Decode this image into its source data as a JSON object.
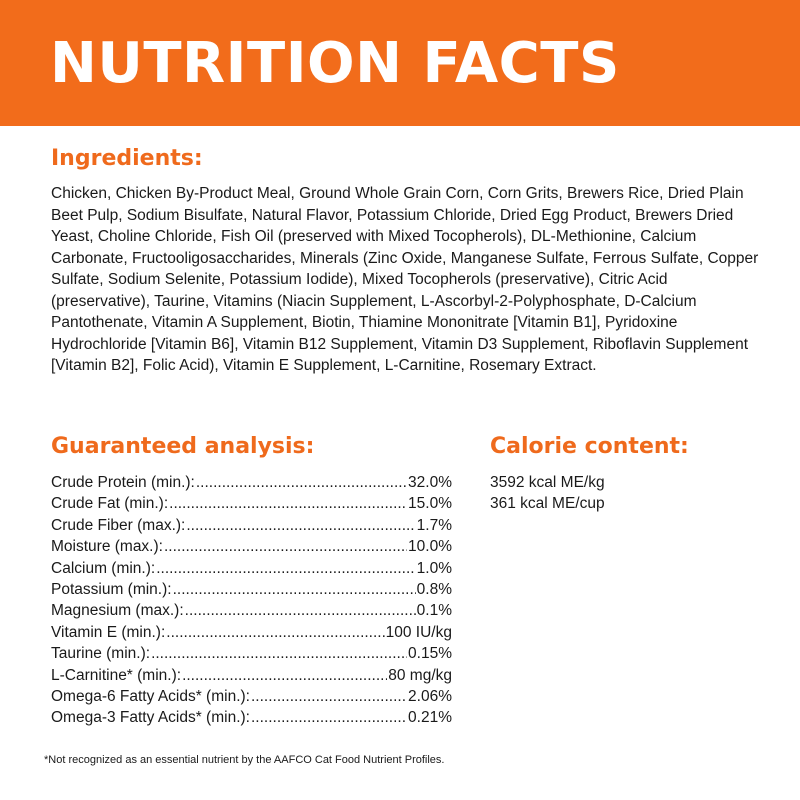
{
  "header": {
    "title": "NUTRITION FACTS"
  },
  "ingredients": {
    "heading": "Ingredients:",
    "text": "Chicken, Chicken By-Product Meal, Ground Whole Grain Corn, Corn Grits, Brewers Rice, Dried Plain Beet Pulp, Sodium Bisulfate, Natural Flavor, Potassium Chloride, Dried Egg Product, Brewers Dried Yeast, Choline Chloride, Fish Oil (preserved with Mixed Tocopherols), DL-Methionine, Calcium Carbonate, Fructooligosaccharides, Minerals (Zinc Oxide, Manganese Sulfate, Ferrous Sulfate, Copper Sulfate, Sodium Selenite, Potassium Iodide), Mixed Tocopherols (preservative), Citric Acid (preservative), Taurine, Vitamins (Niacin Supplement, L-Ascorbyl-2-Polyphosphate, D-Calcium Pantothenate, Vitamin A Supplement, Biotin, Thiamine Mononitrate [Vitamin B1], Pyridoxine Hydrochloride [Vitamin B6], Vitamin B12 Supplement, Vitamin D3 Supplement, Riboflavin Supplement [Vitamin B2], Folic Acid), Vitamin E Supplement, L-Carnitine, Rosemary Extract."
  },
  "guaranteed_analysis": {
    "heading": "Guaranteed analysis:",
    "rows": [
      {
        "label": "Crude Protein (min.):",
        "value": "32.0%"
      },
      {
        "label": "Crude Fat (min.):",
        "value": "15.0%"
      },
      {
        "label": "Crude Fiber (max.):",
        "value": "1.7%"
      },
      {
        "label": "Moisture (max.):",
        "value": "10.0%"
      },
      {
        "label": "Calcium (min.):",
        "value": "1.0%"
      },
      {
        "label": "Potassium (min.):",
        "value": "0.8%"
      },
      {
        "label": "Magnesium (max.):",
        "value": "0.1%"
      },
      {
        "label": "Vitamin E (min.):",
        "value": "100 IU/kg"
      },
      {
        "label": "Taurine (min.):",
        "value": "0.15%"
      },
      {
        "label": "L-Carnitine* (min.):",
        "value": "80 mg/kg"
      },
      {
        "label": "Omega-6 Fatty Acids* (min.):",
        "value": "2.06%"
      },
      {
        "label": "Omega-3 Fatty Acids* (min.):",
        "value": "0.21%"
      }
    ]
  },
  "calorie_content": {
    "heading": "Calorie content:",
    "lines": [
      "3592 kcal ME/kg",
      "361 kcal ME/cup"
    ]
  },
  "footnote": "*Not recognized as an essential nutrient by the AAFCO Cat Food Nutrient Profiles.",
  "colors": {
    "accent": "#f26c1b",
    "heading_text": "#ef6a1c",
    "body_text": "#1a1a1a",
    "banner_text": "#ffffff"
  }
}
